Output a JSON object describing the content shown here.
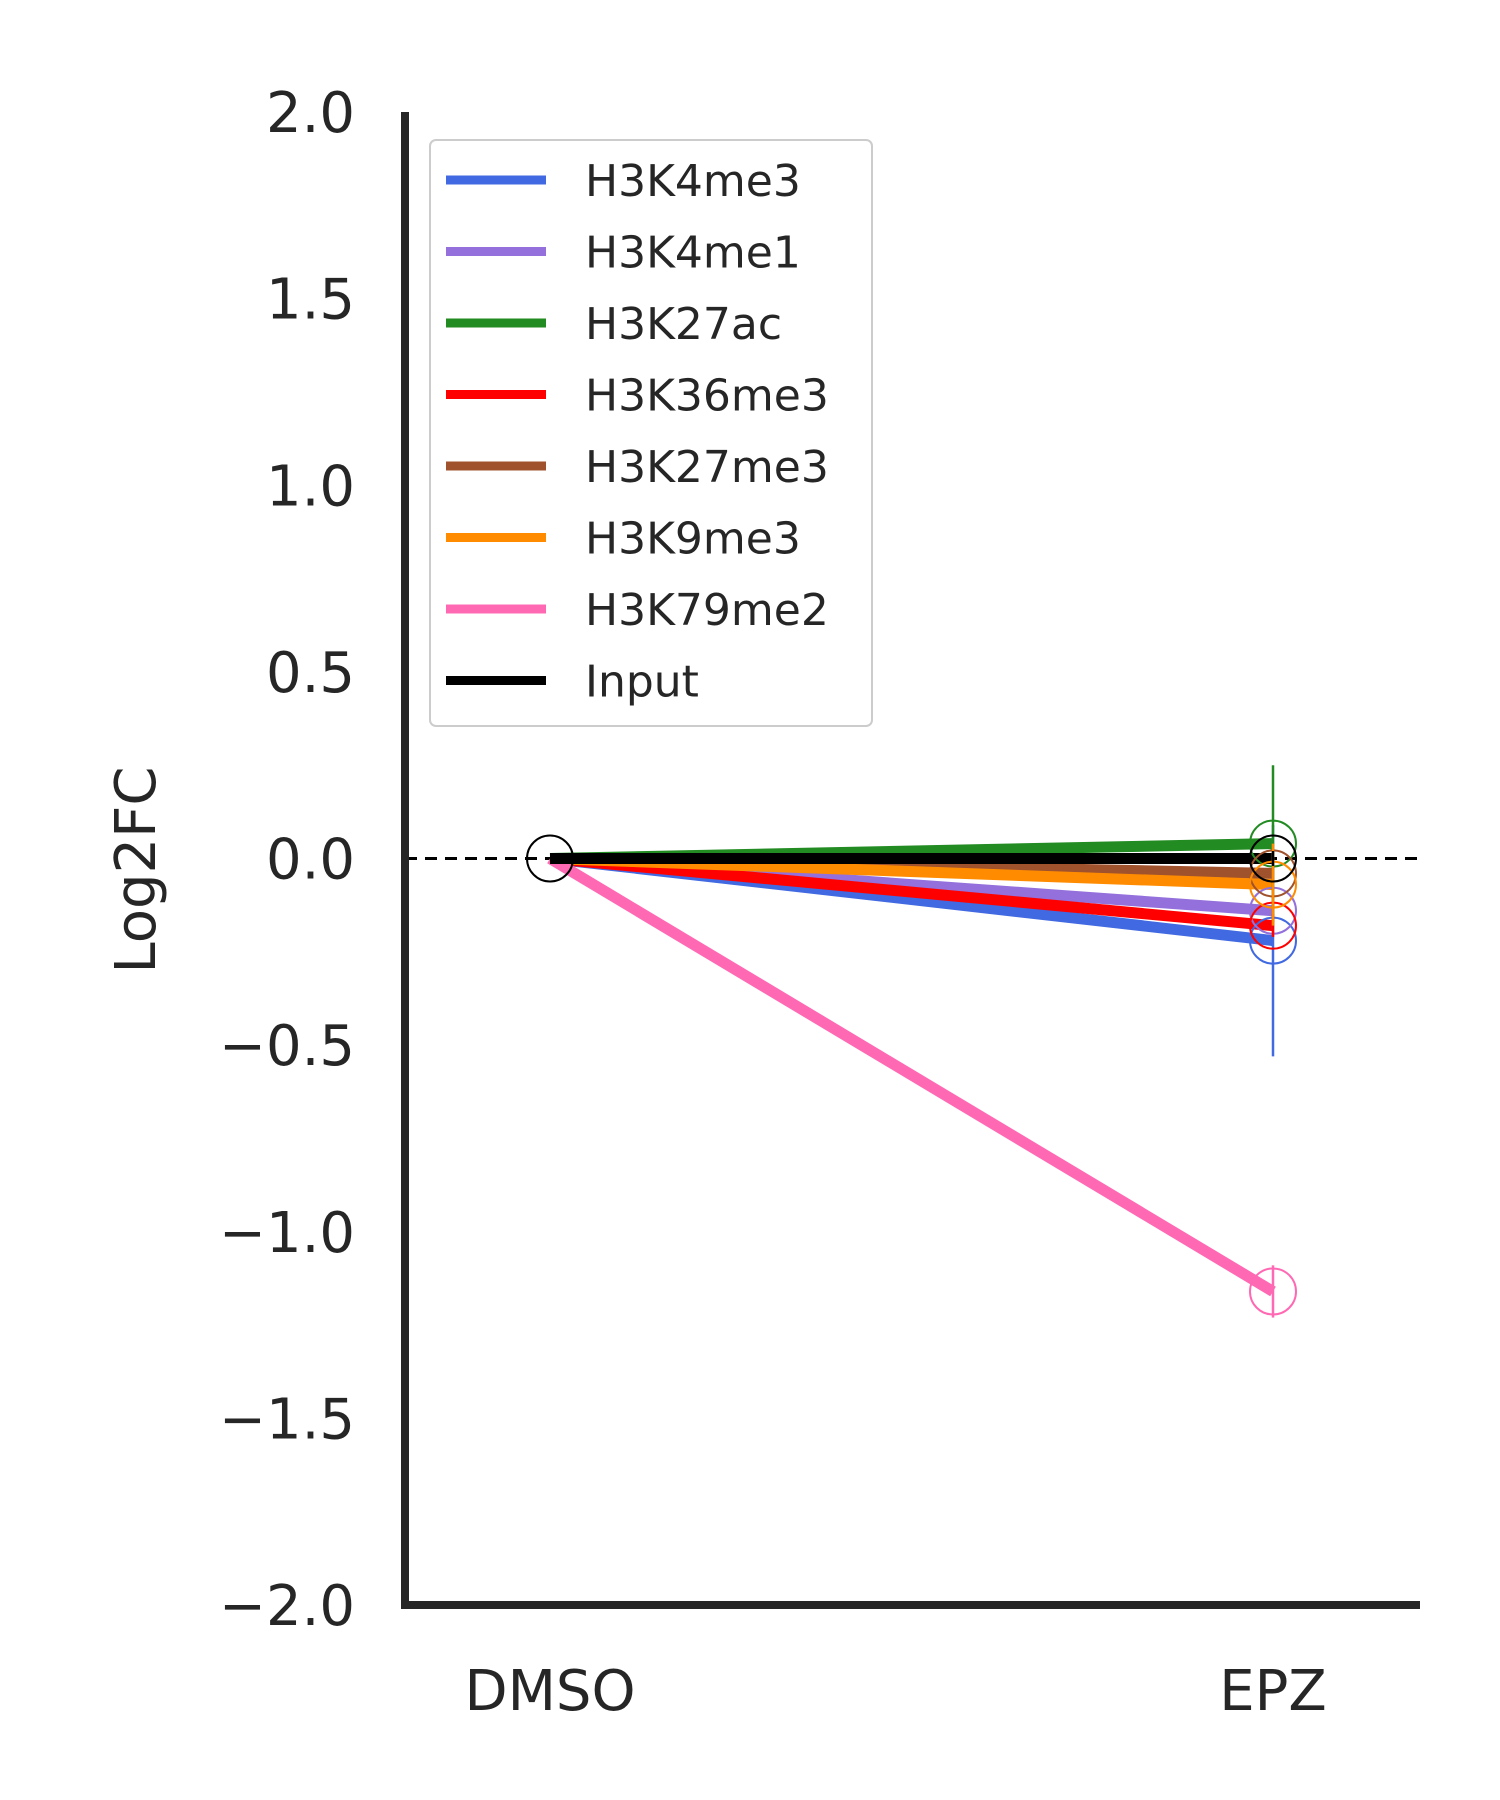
{
  "chart_data": {
    "type": "line",
    "ylabel": "Log2FC",
    "xlabel": "",
    "categories": [
      "DMSO",
      "EPZ"
    ],
    "ylim": [
      -2.0,
      2.0
    ],
    "yticks": [
      2.0,
      1.5,
      1.0,
      0.5,
      0.0,
      -0.5,
      -1.0,
      -1.5,
      -2.0
    ],
    "ytick_labels": [
      "2.0",
      "1.5",
      "1.0",
      "0.5",
      "0.0",
      "−0.5",
      "−1.0",
      "−1.5",
      "−2.0"
    ],
    "reference_line": 0.0,
    "grid": false,
    "legend_placement": "top-left",
    "series": [
      {
        "name": "H3K4me3",
        "color": "#4169E1",
        "values": [
          0.0,
          -0.22
        ],
        "err": [
          0.0,
          0.31
        ]
      },
      {
        "name": "H3K4me1",
        "color": "#9370DB",
        "values": [
          0.0,
          -0.14
        ],
        "err": [
          0.0,
          0.02
        ]
      },
      {
        "name": "H3K27ac",
        "color": "#228B22",
        "values": [
          0.0,
          0.04
        ],
        "err": [
          0.0,
          0.21
        ]
      },
      {
        "name": "H3K36me3",
        "color": "#FF0000",
        "values": [
          0.0,
          -0.18
        ],
        "err": [
          0.0,
          0.03
        ]
      },
      {
        "name": "H3K27me3",
        "color": "#A0522D",
        "values": [
          0.0,
          -0.04
        ],
        "err": [
          0.0,
          0.02
        ]
      },
      {
        "name": "H3K9me3",
        "color": "#FF8C00",
        "values": [
          0.0,
          -0.07
        ],
        "err": [
          0.0,
          0.11
        ]
      },
      {
        "name": "H3K79me2",
        "color": "#FF69B4",
        "values": [
          0.0,
          -1.16
        ],
        "err": [
          0.0,
          0.07
        ]
      },
      {
        "name": "Input",
        "color": "#000000",
        "values": [
          0.0,
          0.0
        ],
        "err": [
          0.0,
          0.02
        ]
      }
    ]
  }
}
